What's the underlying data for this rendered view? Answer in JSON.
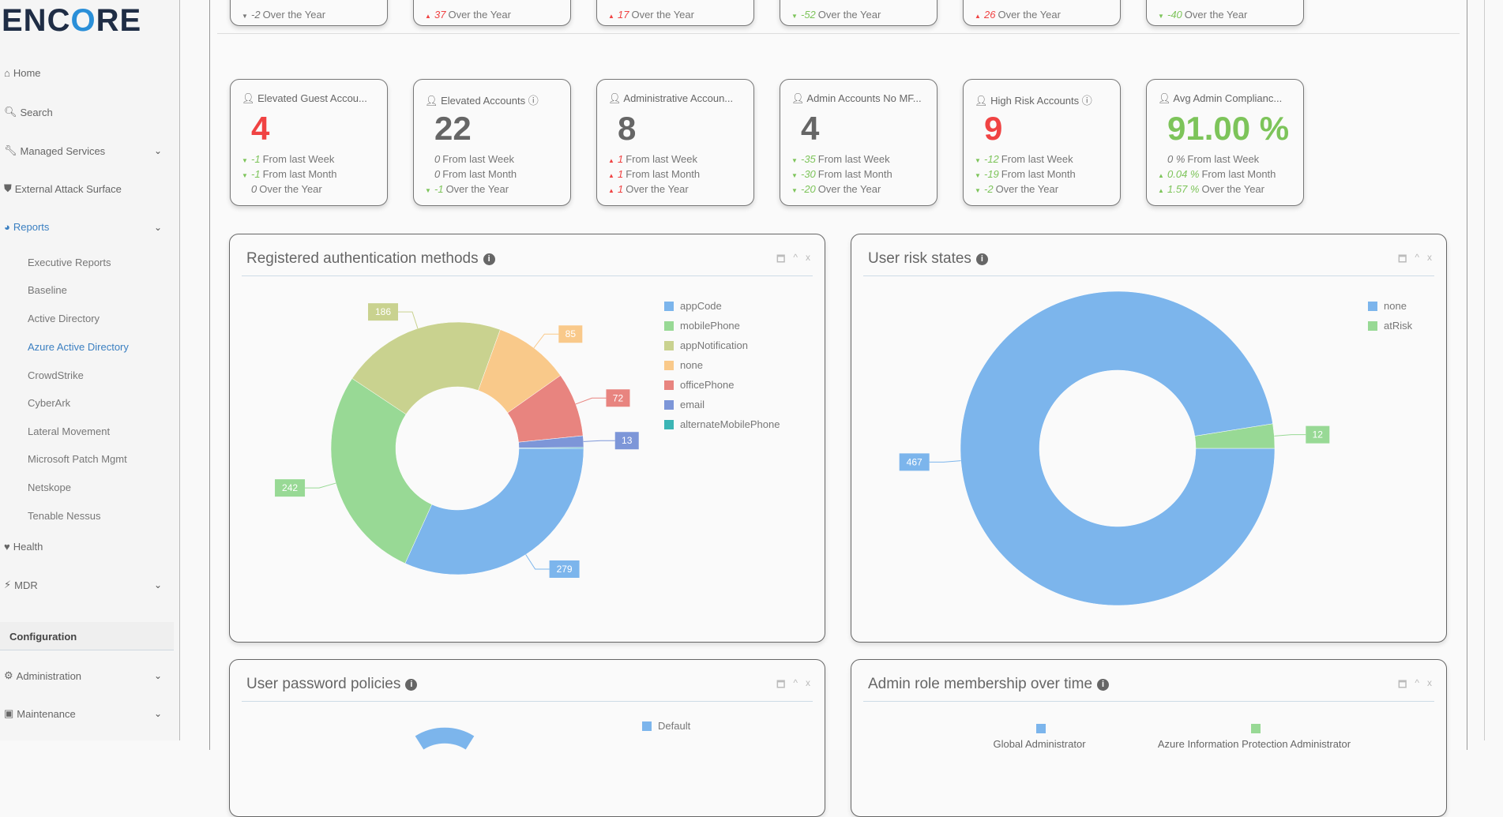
{
  "logo": "ENCORE",
  "sidebar": {
    "items": [
      {
        "label": "Home",
        "icon": "home-icon",
        "glyph": "⌂"
      },
      {
        "label": "Search",
        "icon": "search-icon",
        "glyph": "🔍︎"
      },
      {
        "label": "Managed Services",
        "icon": "wrench-icon",
        "glyph": "🔧︎",
        "chevron": true
      },
      {
        "label": "External Attack Surface",
        "icon": "shield-icon",
        "glyph": "⛊"
      },
      {
        "label": "Reports",
        "icon": "pie-chart-icon",
        "glyph": "◕",
        "chevron": true,
        "active": true
      }
    ],
    "reports_sub": [
      "Executive Reports",
      "Baseline",
      "Active Directory",
      "Azure Active Directory",
      "CrowdStrike",
      "CyberArk",
      "Lateral Movement",
      "Microsoft Patch Mgmt",
      "Netskope",
      "Tenable Nessus"
    ],
    "active_sub": "Azure Active Directory",
    "items2": [
      {
        "label": "Health",
        "icon": "heartbeat-icon",
        "glyph": "♥"
      },
      {
        "label": "MDR",
        "icon": "bolt-icon",
        "glyph": "⚡︎",
        "chevron": true
      }
    ],
    "config_header": "Configuration",
    "items3": [
      {
        "label": "Administration",
        "icon": "gear-icon",
        "glyph": "⚙",
        "chevron": true
      },
      {
        "label": "Maintenance",
        "icon": "toolbox-icon",
        "glyph": "▣",
        "chevron": true
      }
    ]
  },
  "colors": {
    "up": "#f04343",
    "down": "#7dc45a",
    "neutral": "#666666",
    "accent": "#3a7fc1"
  },
  "top_cards": [
    {
      "value": "-2",
      "text": "Over the Year",
      "trend": "down-neutral"
    },
    {
      "value": "37",
      "text": "Over the Year",
      "trend": "up"
    },
    {
      "value": "17",
      "text": "Over the Year",
      "trend": "up"
    },
    {
      "value": "-52",
      "text": "Over the Year",
      "trend": "down"
    },
    {
      "value": "26",
      "text": "Over the Year",
      "trend": "up"
    },
    {
      "value": "-40",
      "text": "Over the Year",
      "trend": "down"
    }
  ],
  "cards": [
    {
      "title": "Elevated Guest Accou...",
      "value": "4",
      "value_color": "red",
      "lines": [
        {
          "value": "-1",
          "text": "From last Week",
          "trend": "down"
        },
        {
          "value": "-1",
          "text": "From last Month",
          "trend": "down"
        },
        {
          "value": "0",
          "text": "Over the Year",
          "trend": "none"
        }
      ]
    },
    {
      "title": "Elevated Accounts ⓘ",
      "value": "22",
      "value_color": "gray",
      "lines": [
        {
          "value": "0",
          "text": "From last Week",
          "trend": "none"
        },
        {
          "value": "0",
          "text": "From last Month",
          "trend": "none"
        },
        {
          "value": "-1",
          "text": "Over the Year",
          "trend": "down"
        }
      ]
    },
    {
      "title": "Administrative Accoun...",
      "value": "8",
      "value_color": "gray",
      "lines": [
        {
          "value": "1",
          "text": "From last Week",
          "trend": "up"
        },
        {
          "value": "1",
          "text": "From last Month",
          "trend": "up"
        },
        {
          "value": "1",
          "text": "Over the Year",
          "trend": "up"
        }
      ]
    },
    {
      "title": "Admin Accounts No MF...",
      "value": "4",
      "value_color": "gray",
      "lines": [
        {
          "value": "-35",
          "text": "From last Week",
          "trend": "down"
        },
        {
          "value": "-30",
          "text": "From last Month",
          "trend": "down"
        },
        {
          "value": "-20",
          "text": "Over the Year",
          "trend": "down"
        }
      ]
    },
    {
      "title": "High Risk Accounts ⓘ",
      "value": "9",
      "value_color": "red",
      "lines": [
        {
          "value": "-12",
          "text": "From last Week",
          "trend": "down"
        },
        {
          "value": "-19",
          "text": "From last Month",
          "trend": "down"
        },
        {
          "value": "-2",
          "text": "Over the Year",
          "trend": "down"
        }
      ]
    },
    {
      "title": "Avg Admin Complianc...",
      "value": "91.00 %",
      "value_color": "green",
      "lines": [
        {
          "value": "0 %",
          "text": "From last Week",
          "trend": "none"
        },
        {
          "value": "0.04 %",
          "text": "From last Month",
          "trend": "up-green"
        },
        {
          "value": "1.57 %",
          "text": "Over the Year",
          "trend": "up-green"
        }
      ]
    }
  ],
  "panel_controls": {
    "maximize": "🗖",
    "collapse": "^",
    "close": "x"
  },
  "chart_data": [
    {
      "type": "pie",
      "donut": true,
      "title": "Registered authentication methods",
      "legend": "right",
      "categories": [
        "appCode",
        "mobilePhone",
        "appNotification",
        "none",
        "officePhone",
        "email",
        "alternateMobilePhone"
      ],
      "values": [
        279,
        242,
        186,
        85,
        72,
        13,
        1
      ],
      "labels": [
        "279",
        "242",
        "186",
        "85",
        "72",
        "13",
        ""
      ],
      "colors": [
        "#7cb5ec",
        "#98d995",
        "#c9d28f",
        "#f9c98a",
        "#e8847f",
        "#7d96d8",
        "#3bb5b5"
      ]
    },
    {
      "type": "pie",
      "donut": true,
      "title": "User risk states",
      "legend": "right",
      "categories": [
        "none",
        "atRisk"
      ],
      "values": [
        467,
        12
      ],
      "labels": [
        "467",
        "12"
      ],
      "colors": [
        "#7cb5ec",
        "#98d995"
      ]
    },
    {
      "type": "pie",
      "donut": true,
      "title": "User password policies",
      "legend": "right",
      "categories": [
        "Default"
      ],
      "colors": [
        "#7cb5ec"
      ]
    },
    {
      "type": "line",
      "title": "Admin role membership over time",
      "legend": "top",
      "series": [
        {
          "name": "Global Administrator",
          "color": "#7cb5ec"
        },
        {
          "name": "Azure Information Protection Administrator",
          "color": "#98d995"
        }
      ]
    }
  ]
}
